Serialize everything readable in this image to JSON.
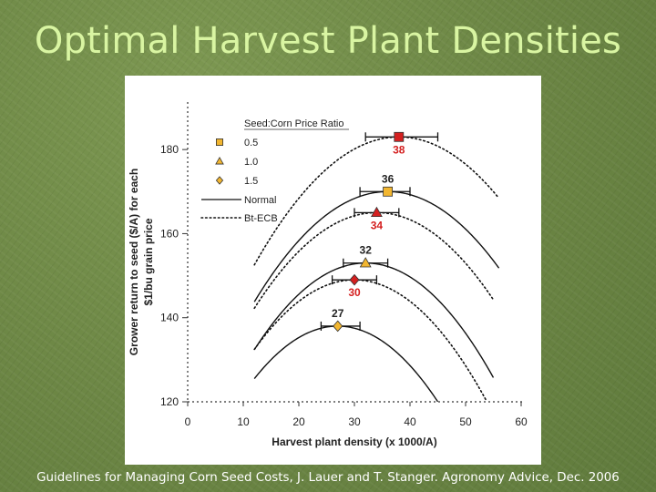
{
  "title": "Optimal Harvest Plant Densities",
  "caption": "Guidelines for Managing Corn Seed Costs, J. Lauer and T. Stanger. Agronomy Advice, Dec. 2006",
  "chart_data": {
    "type": "line",
    "xlabel": "Harvest plant density (x 1000/A)",
    "ylabel_line1": "Grower return to seed ($/A) for each",
    "ylabel_line2": "$1/bu grain price",
    "xlim": [
      0,
      60
    ],
    "ylim": [
      120,
      190
    ],
    "x_ticks": [
      0,
      10,
      20,
      30,
      40,
      50,
      60
    ],
    "y_ticks": [
      120,
      140,
      160,
      180
    ],
    "legend": {
      "title": "Seed:Corn Price Ratio",
      "ratios": [
        {
          "label": "0.5",
          "marker": "square",
          "color": "#f2b630"
        },
        {
          "label": "1.0",
          "marker": "triangle",
          "color": "#f2b630"
        },
        {
          "label": "1.5",
          "marker": "diamond",
          "color": "#f2b630"
        }
      ],
      "lines": [
        {
          "label": "Normal",
          "style": "solid"
        },
        {
          "label": "Bt-ECB",
          "style": "dotted"
        }
      ]
    },
    "series": [
      {
        "name": "Normal 0.5",
        "style": "solid",
        "ratio": "0.5",
        "x_range": [
          12,
          56
        ],
        "optimum": {
          "x": 36,
          "y": 170
        },
        "curvature": 0.0455
      },
      {
        "name": "Normal 1.0",
        "style": "solid",
        "ratio": "1.0",
        "x_range": [
          12,
          55
        ],
        "optimum": {
          "x": 32,
          "y": 153
        },
        "curvature": 0.0515
      },
      {
        "name": "Normal 1.5",
        "style": "solid",
        "ratio": "1.5",
        "x_range": [
          12,
          54
        ],
        "optimum": {
          "x": 27,
          "y": 138
        },
        "curvature": 0.0555
      },
      {
        "name": "Bt-ECB 0.5",
        "style": "dotted",
        "ratio": "0.5",
        "x_range": [
          12,
          56
        ],
        "optimum": {
          "x": 38,
          "y": 183
        },
        "curvature": 0.045
      },
      {
        "name": "Bt-ECB 1.0",
        "style": "dotted",
        "ratio": "1.0",
        "x_range": [
          12,
          55
        ],
        "optimum": {
          "x": 34,
          "y": 165
        },
        "curvature": 0.047
      },
      {
        "name": "Bt-ECB 1.5",
        "style": "dotted",
        "ratio": "1.5",
        "x_range": [
          12,
          54
        ],
        "optimum": {
          "x": 30,
          "y": 149
        },
        "curvature": 0.051
      }
    ],
    "optima": [
      {
        "label": "38",
        "x": 38,
        "y": 183,
        "marker": "square",
        "fill": "#d42020",
        "label_color": "#d42020",
        "label_pos": "below",
        "err": [
          32,
          45
        ]
      },
      {
        "label": "36",
        "x": 36,
        "y": 170,
        "marker": "square",
        "fill": "#f2b630",
        "label_color": "#222222",
        "label_pos": "above",
        "err": [
          31,
          40
        ]
      },
      {
        "label": "34",
        "x": 34,
        "y": 165,
        "marker": "triangle",
        "fill": "#d42020",
        "label_color": "#d42020",
        "label_pos": "below",
        "err": [
          30,
          38
        ]
      },
      {
        "label": "32",
        "x": 32,
        "y": 153,
        "marker": "triangle",
        "fill": "#f2b630",
        "label_color": "#222222",
        "label_pos": "above",
        "err": [
          28,
          36
        ]
      },
      {
        "label": "30",
        "x": 30,
        "y": 149,
        "marker": "diamond",
        "fill": "#d42020",
        "label_color": "#d42020",
        "label_pos": "below",
        "err": [
          26,
          34
        ]
      },
      {
        "label": "27",
        "x": 27,
        "y": 138,
        "marker": "diamond",
        "fill": "#f2b630",
        "label_color": "#222222",
        "label_pos": "above",
        "err": [
          24,
          31
        ]
      }
    ]
  }
}
